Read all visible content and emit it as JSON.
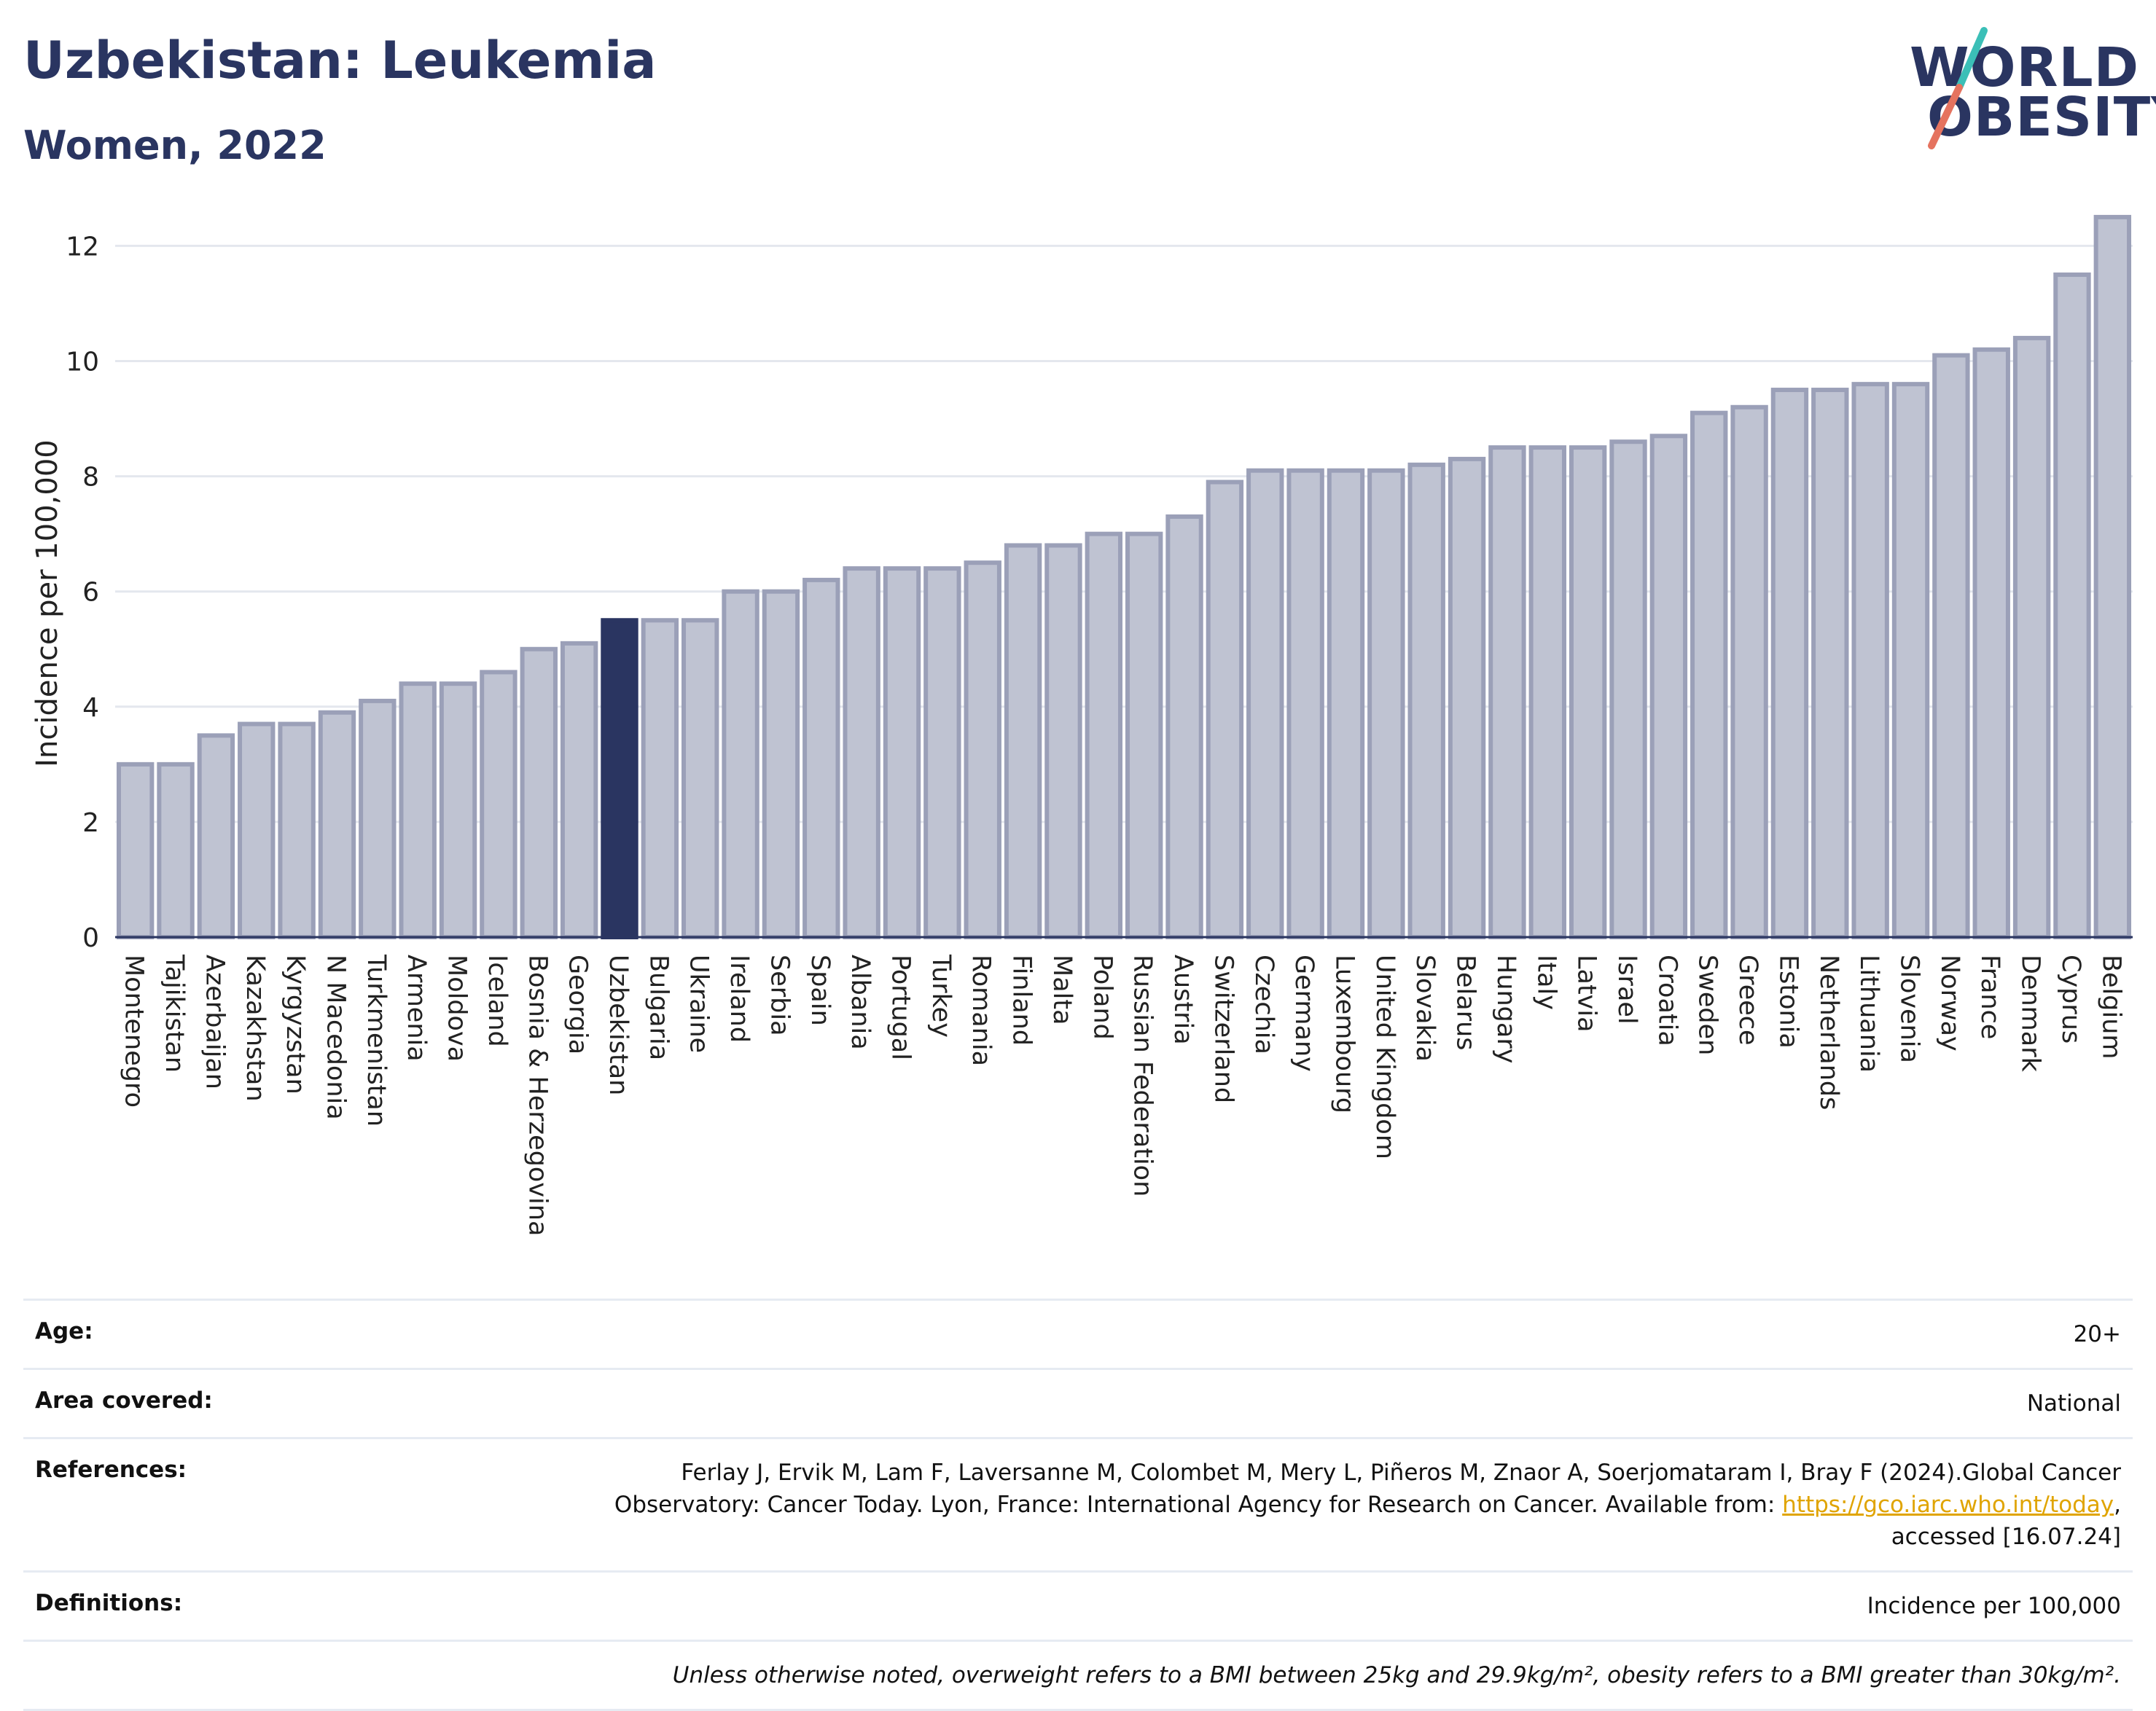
{
  "header": {
    "title": "Uzbekistan: Leukemia",
    "subtitle": "Women, 2022"
  },
  "logo": {
    "line1": "WORLD",
    "line2": "OBESITY"
  },
  "chart_data": {
    "type": "bar",
    "ylabel": "Incidence per 100,000",
    "ylim": [
      0,
      12.6
    ],
    "yticks": [
      0,
      2,
      4,
      6,
      8,
      10,
      12
    ],
    "grid": true,
    "highlight": "Uzbekistan",
    "colors": {
      "bar": "#bfc3d2",
      "bar_edge": "#9ba0b8",
      "highlight": "#2a3561"
    },
    "categories": [
      "Montenegro",
      "Tajikistan",
      "Azerbaijan",
      "Kazakhstan",
      "Kyrgyzstan",
      "N Macedonia",
      "Turkmenistan",
      "Armenia",
      "Moldova",
      "Iceland",
      "Bosnia & Herzegovina",
      "Georgia",
      "Uzbekistan",
      "Bulgaria",
      "Ukraine",
      "Ireland",
      "Serbia",
      "Spain",
      "Albania",
      "Portugal",
      "Turkey",
      "Romania",
      "Finland",
      "Malta",
      "Poland",
      "Russian Federation",
      "Austria",
      "Switzerland",
      "Czechia",
      "Germany",
      "Luxembourg",
      "United Kingdom",
      "Slovakia",
      "Belarus",
      "Hungary",
      "Italy",
      "Latvia",
      "Israel",
      "Croatia",
      "Sweden",
      "Greece",
      "Estonia",
      "Netherlands",
      "Lithuania",
      "Slovenia",
      "Norway",
      "France",
      "Denmark",
      "Cyprus",
      "Belgium"
    ],
    "values": [
      3.0,
      3.0,
      3.5,
      3.7,
      3.7,
      3.9,
      4.1,
      4.4,
      4.4,
      4.6,
      5.0,
      5.1,
      5.5,
      5.5,
      5.5,
      6.0,
      6.0,
      6.2,
      6.4,
      6.4,
      6.4,
      6.5,
      6.8,
      6.8,
      7.0,
      7.0,
      7.3,
      7.9,
      8.1,
      8.1,
      8.1,
      8.1,
      8.2,
      8.3,
      8.5,
      8.5,
      8.5,
      8.6,
      8.7,
      9.1,
      9.2,
      9.5,
      9.5,
      9.6,
      9.6,
      10.1,
      10.2,
      10.4,
      11.5,
      12.5
    ]
  },
  "info": {
    "age_label": "Age:",
    "age_value": "20+",
    "area_label": "Area covered:",
    "area_value": "National",
    "references_label": "References:",
    "references_line1": "Ferlay J, Ervik M, Lam F, Laversanne M, Colombet M, Mery L, Piñeros M, Znaor A, Soerjomataram I, Bray F (2024).Global Cancer",
    "references_line2": "Observatory: Cancer Today. Lyon, France: International Agency for Research on Cancer. Available from:",
    "references_link": "https://gco.iarc.who.int/today",
    "references_line3": "accessed [16.07.24]",
    "definitions_label": "Definitions:",
    "definitions_value": "Incidence per 100,000",
    "note": "Unless otherwise noted, overweight refers to a BMI between 25kg and 29.9kg/m², obesity refers to a BMI greater than 30kg/m²."
  }
}
